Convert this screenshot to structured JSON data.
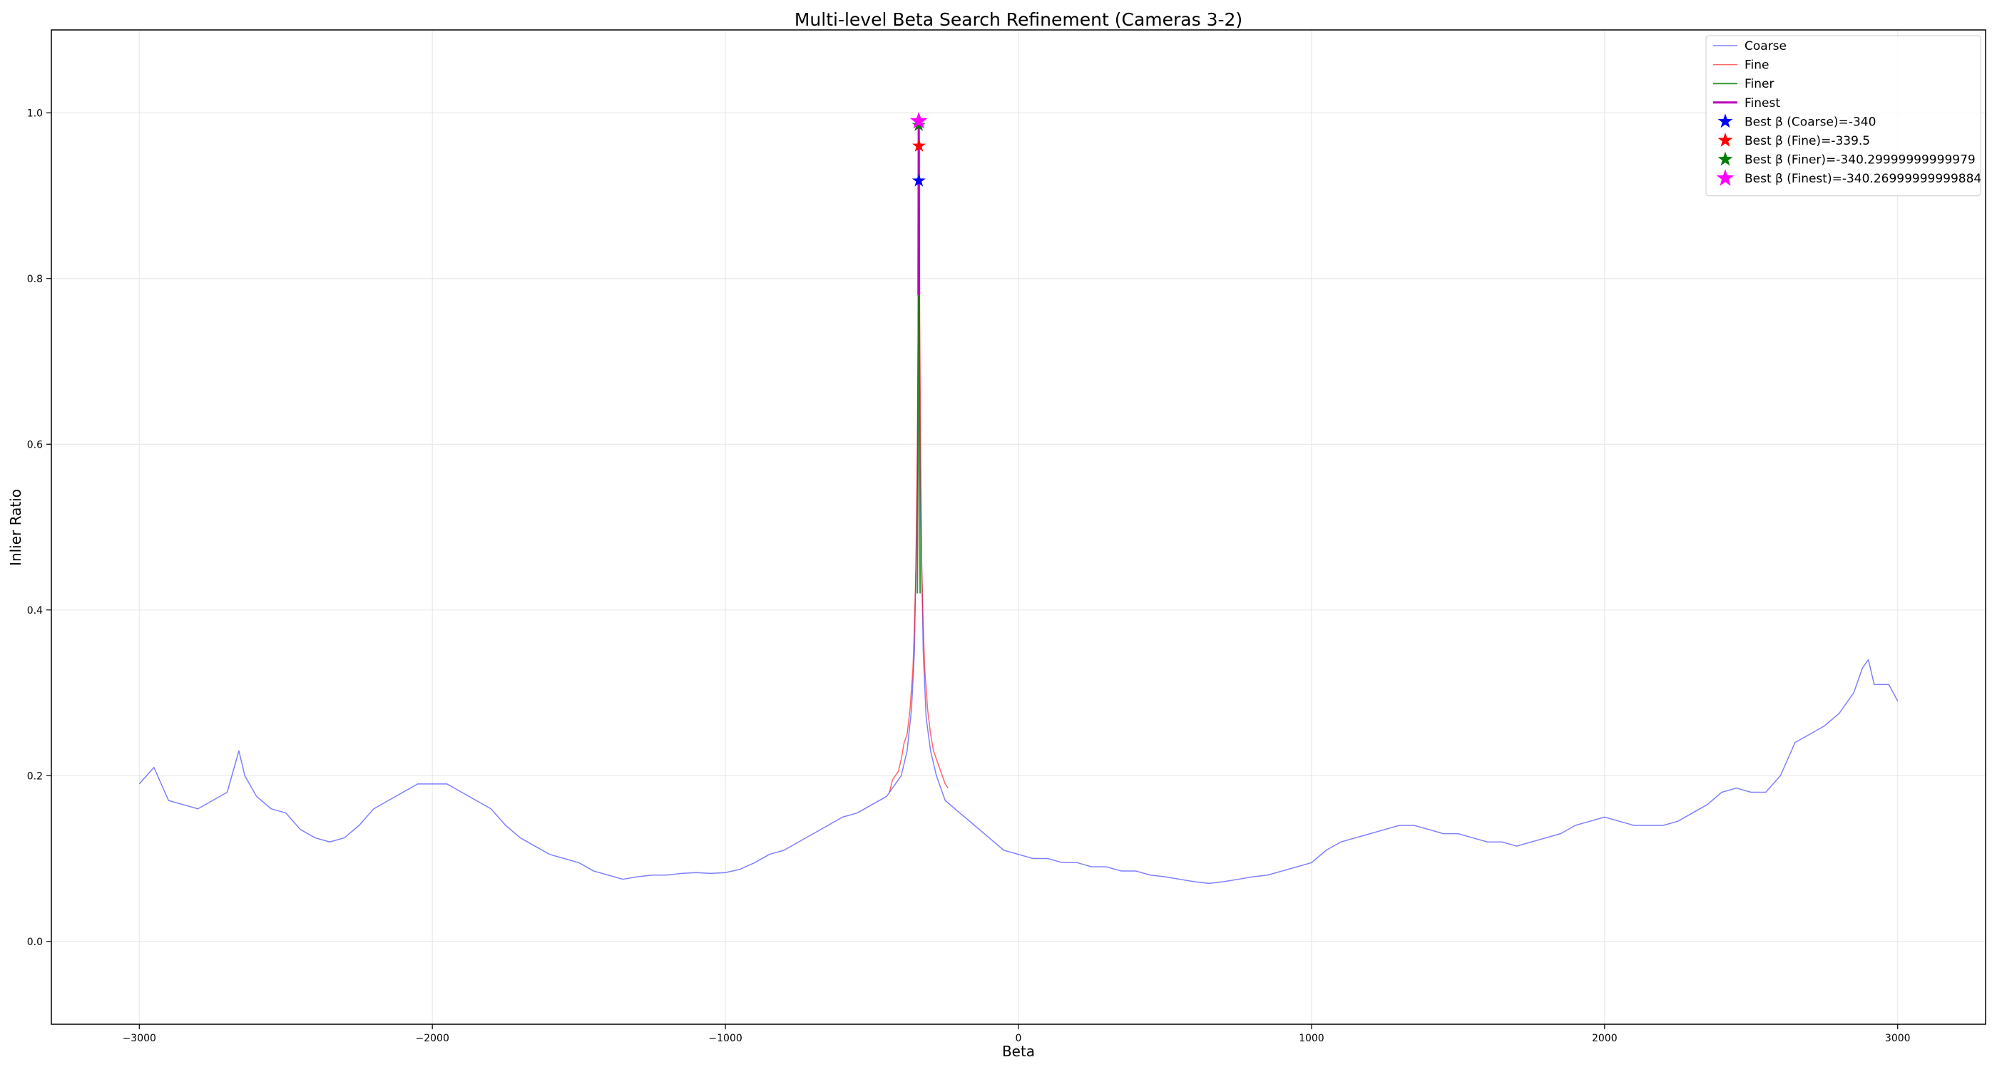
{
  "chart_data": {
    "type": "line",
    "title": "Multi-level Beta Search Refinement (Cameras 3-2)",
    "xlabel": "Beta",
    "ylabel": "Inlier Ratio",
    "xlim": [
      -3300,
      3300
    ],
    "ylim": [
      -0.1,
      1.1
    ],
    "x_ticks": [
      -3000,
      -2000,
      -1000,
      0,
      1000,
      2000,
      3000
    ],
    "x_tick_labels": [
      "−3000",
      "−2000",
      "−1000",
      "0",
      "1000",
      "2000",
      "3000"
    ],
    "y_ticks": [
      0.0,
      0.2,
      0.4,
      0.6,
      0.8,
      1.0
    ],
    "y_tick_labels": [
      "0.0",
      "0.2",
      "0.4",
      "0.6",
      "0.8",
      "1.0"
    ],
    "grid": true,
    "legend_position": "top-right",
    "series": [
      {
        "name": "Coarse",
        "color": "#0000ff",
        "alpha": 0.5,
        "points": [
          [
            -3000,
            0.19
          ],
          [
            -2950,
            0.21
          ],
          [
            -2900,
            0.17
          ],
          [
            -2850,
            0.165
          ],
          [
            -2800,
            0.16
          ],
          [
            -2750,
            0.17
          ],
          [
            -2700,
            0.18
          ],
          [
            -2660,
            0.23
          ],
          [
            -2640,
            0.2
          ],
          [
            -2600,
            0.175
          ],
          [
            -2550,
            0.16
          ],
          [
            -2500,
            0.155
          ],
          [
            -2450,
            0.135
          ],
          [
            -2400,
            0.125
          ],
          [
            -2350,
            0.12
          ],
          [
            -2300,
            0.125
          ],
          [
            -2250,
            0.14
          ],
          [
            -2200,
            0.16
          ],
          [
            -2150,
            0.17
          ],
          [
            -2100,
            0.18
          ],
          [
            -2050,
            0.19
          ],
          [
            -2000,
            0.19
          ],
          [
            -1950,
            0.19
          ],
          [
            -1900,
            0.18
          ],
          [
            -1850,
            0.17
          ],
          [
            -1800,
            0.16
          ],
          [
            -1750,
            0.14
          ],
          [
            -1700,
            0.125
          ],
          [
            -1650,
            0.115
          ],
          [
            -1600,
            0.105
          ],
          [
            -1550,
            0.1
          ],
          [
            -1500,
            0.095
          ],
          [
            -1450,
            0.085
          ],
          [
            -1400,
            0.08
          ],
          [
            -1350,
            0.075
          ],
          [
            -1300,
            0.078
          ],
          [
            -1250,
            0.08
          ],
          [
            -1200,
            0.08
          ],
          [
            -1150,
            0.082
          ],
          [
            -1100,
            0.083
          ],
          [
            -1050,
            0.082
          ],
          [
            -1000,
            0.083
          ],
          [
            -950,
            0.087
          ],
          [
            -900,
            0.095
          ],
          [
            -850,
            0.105
          ],
          [
            -800,
            0.11
          ],
          [
            -750,
            0.12
          ],
          [
            -700,
            0.13
          ],
          [
            -650,
            0.14
          ],
          [
            -600,
            0.15
          ],
          [
            -550,
            0.155
          ],
          [
            -500,
            0.165
          ],
          [
            -450,
            0.175
          ],
          [
            -420,
            0.19
          ],
          [
            -400,
            0.2
          ],
          [
            -380,
            0.23
          ],
          [
            -365,
            0.28
          ],
          [
            -355,
            0.35
          ],
          [
            -345,
            0.55
          ],
          [
            -340,
            0.918
          ],
          [
            -335,
            0.55
          ],
          [
            -325,
            0.35
          ],
          [
            -315,
            0.27
          ],
          [
            -300,
            0.23
          ],
          [
            -280,
            0.2
          ],
          [
            -250,
            0.17
          ],
          [
            -200,
            0.155
          ],
          [
            -150,
            0.14
          ],
          [
            -100,
            0.125
          ],
          [
            -50,
            0.11
          ],
          [
            0,
            0.105
          ],
          [
            50,
            0.1
          ],
          [
            100,
            0.1
          ],
          [
            150,
            0.095
          ],
          [
            200,
            0.095
          ],
          [
            250,
            0.09
          ],
          [
            300,
            0.09
          ],
          [
            350,
            0.085
          ],
          [
            400,
            0.085
          ],
          [
            450,
            0.08
          ],
          [
            500,
            0.078
          ],
          [
            550,
            0.075
          ],
          [
            600,
            0.072
          ],
          [
            650,
            0.07
          ],
          [
            700,
            0.072
          ],
          [
            750,
            0.075
          ],
          [
            800,
            0.078
          ],
          [
            850,
            0.08
          ],
          [
            900,
            0.085
          ],
          [
            950,
            0.09
          ],
          [
            1000,
            0.095
          ],
          [
            1050,
            0.11
          ],
          [
            1100,
            0.12
          ],
          [
            1150,
            0.125
          ],
          [
            1200,
            0.13
          ],
          [
            1250,
            0.135
          ],
          [
            1300,
            0.14
          ],
          [
            1350,
            0.14
          ],
          [
            1400,
            0.135
          ],
          [
            1450,
            0.13
          ],
          [
            1500,
            0.13
          ],
          [
            1550,
            0.125
          ],
          [
            1600,
            0.12
          ],
          [
            1650,
            0.12
          ],
          [
            1700,
            0.115
          ],
          [
            1750,
            0.12
          ],
          [
            1800,
            0.125
          ],
          [
            1850,
            0.13
          ],
          [
            1900,
            0.14
          ],
          [
            1950,
            0.145
          ],
          [
            2000,
            0.15
          ],
          [
            2050,
            0.145
          ],
          [
            2100,
            0.14
          ],
          [
            2150,
            0.14
          ],
          [
            2200,
            0.14
          ],
          [
            2250,
            0.145
          ],
          [
            2300,
            0.155
          ],
          [
            2350,
            0.165
          ],
          [
            2400,
            0.18
          ],
          [
            2450,
            0.185
          ],
          [
            2500,
            0.18
          ],
          [
            2550,
            0.18
          ],
          [
            2600,
            0.2
          ],
          [
            2650,
            0.24
          ],
          [
            2700,
            0.25
          ],
          [
            2750,
            0.26
          ],
          [
            2800,
            0.275
          ],
          [
            2850,
            0.3
          ],
          [
            2880,
            0.33
          ],
          [
            2900,
            0.34
          ],
          [
            2920,
            0.31
          ],
          [
            2950,
            0.31
          ],
          [
            2970,
            0.31
          ],
          [
            3000,
            0.29
          ]
        ]
      },
      {
        "name": "Fine",
        "color": "#ff0000",
        "alpha": 0.6,
        "points": [
          [
            -440,
            0.18
          ],
          [
            -430,
            0.195
          ],
          [
            -420,
            0.2
          ],
          [
            -410,
            0.205
          ],
          [
            -400,
            0.22
          ],
          [
            -390,
            0.24
          ],
          [
            -380,
            0.25
          ],
          [
            -370,
            0.28
          ],
          [
            -360,
            0.33
          ],
          [
            -355,
            0.38
          ],
          [
            -350,
            0.45
          ],
          [
            -345,
            0.6
          ],
          [
            -342,
            0.75
          ],
          [
            -339.5,
            0.96
          ],
          [
            -337,
            0.75
          ],
          [
            -334,
            0.6
          ],
          [
            -330,
            0.45
          ],
          [
            -325,
            0.38
          ],
          [
            -320,
            0.33
          ],
          [
            -310,
            0.28
          ],
          [
            -300,
            0.25
          ],
          [
            -290,
            0.23
          ],
          [
            -280,
            0.22
          ],
          [
            -270,
            0.21
          ],
          [
            -260,
            0.2
          ],
          [
            -250,
            0.19
          ],
          [
            -240,
            0.185
          ]
        ]
      },
      {
        "name": "Finer",
        "color": "#008000",
        "alpha": 0.8,
        "points": [
          [
            -345,
            0.42
          ],
          [
            -344,
            0.5
          ],
          [
            -343,
            0.58
          ],
          [
            -342,
            0.7
          ],
          [
            -341,
            0.85
          ],
          [
            -340.3,
            0.985
          ],
          [
            -339.5,
            0.85
          ],
          [
            -338.5,
            0.7
          ],
          [
            -337.5,
            0.58
          ],
          [
            -336.5,
            0.5
          ],
          [
            -335.5,
            0.42
          ]
        ]
      },
      {
        "name": "Finest",
        "color": "#bb00bb",
        "alpha": 1.0,
        "points": [
          [
            -341.3,
            0.78
          ],
          [
            -341.0,
            0.84
          ],
          [
            -340.7,
            0.9
          ],
          [
            -340.5,
            0.95
          ],
          [
            -340.27,
            0.99
          ],
          [
            -340.0,
            0.95
          ],
          [
            -339.8,
            0.9
          ],
          [
            -339.5,
            0.84
          ],
          [
            -339.2,
            0.78
          ]
        ]
      }
    ],
    "best_markers": [
      {
        "name": "Best β (Coarse)=-340",
        "x": -340,
        "y": 0.918,
        "color": "#0000ff",
        "size": "normal"
      },
      {
        "name": "Best β (Fine)=-339.5",
        "x": -339.5,
        "y": 0.96,
        "color": "#ff0000",
        "size": "normal"
      },
      {
        "name": "Best β (Finer)=-340.29999999999979",
        "x": -340.3,
        "y": 0.985,
        "color": "#008000",
        "size": "normal"
      },
      {
        "name": "Best β (Finest)=-340.26999999999884",
        "x": -340.27,
        "y": 0.99,
        "color": "#ff00ff",
        "size": "large"
      }
    ]
  }
}
